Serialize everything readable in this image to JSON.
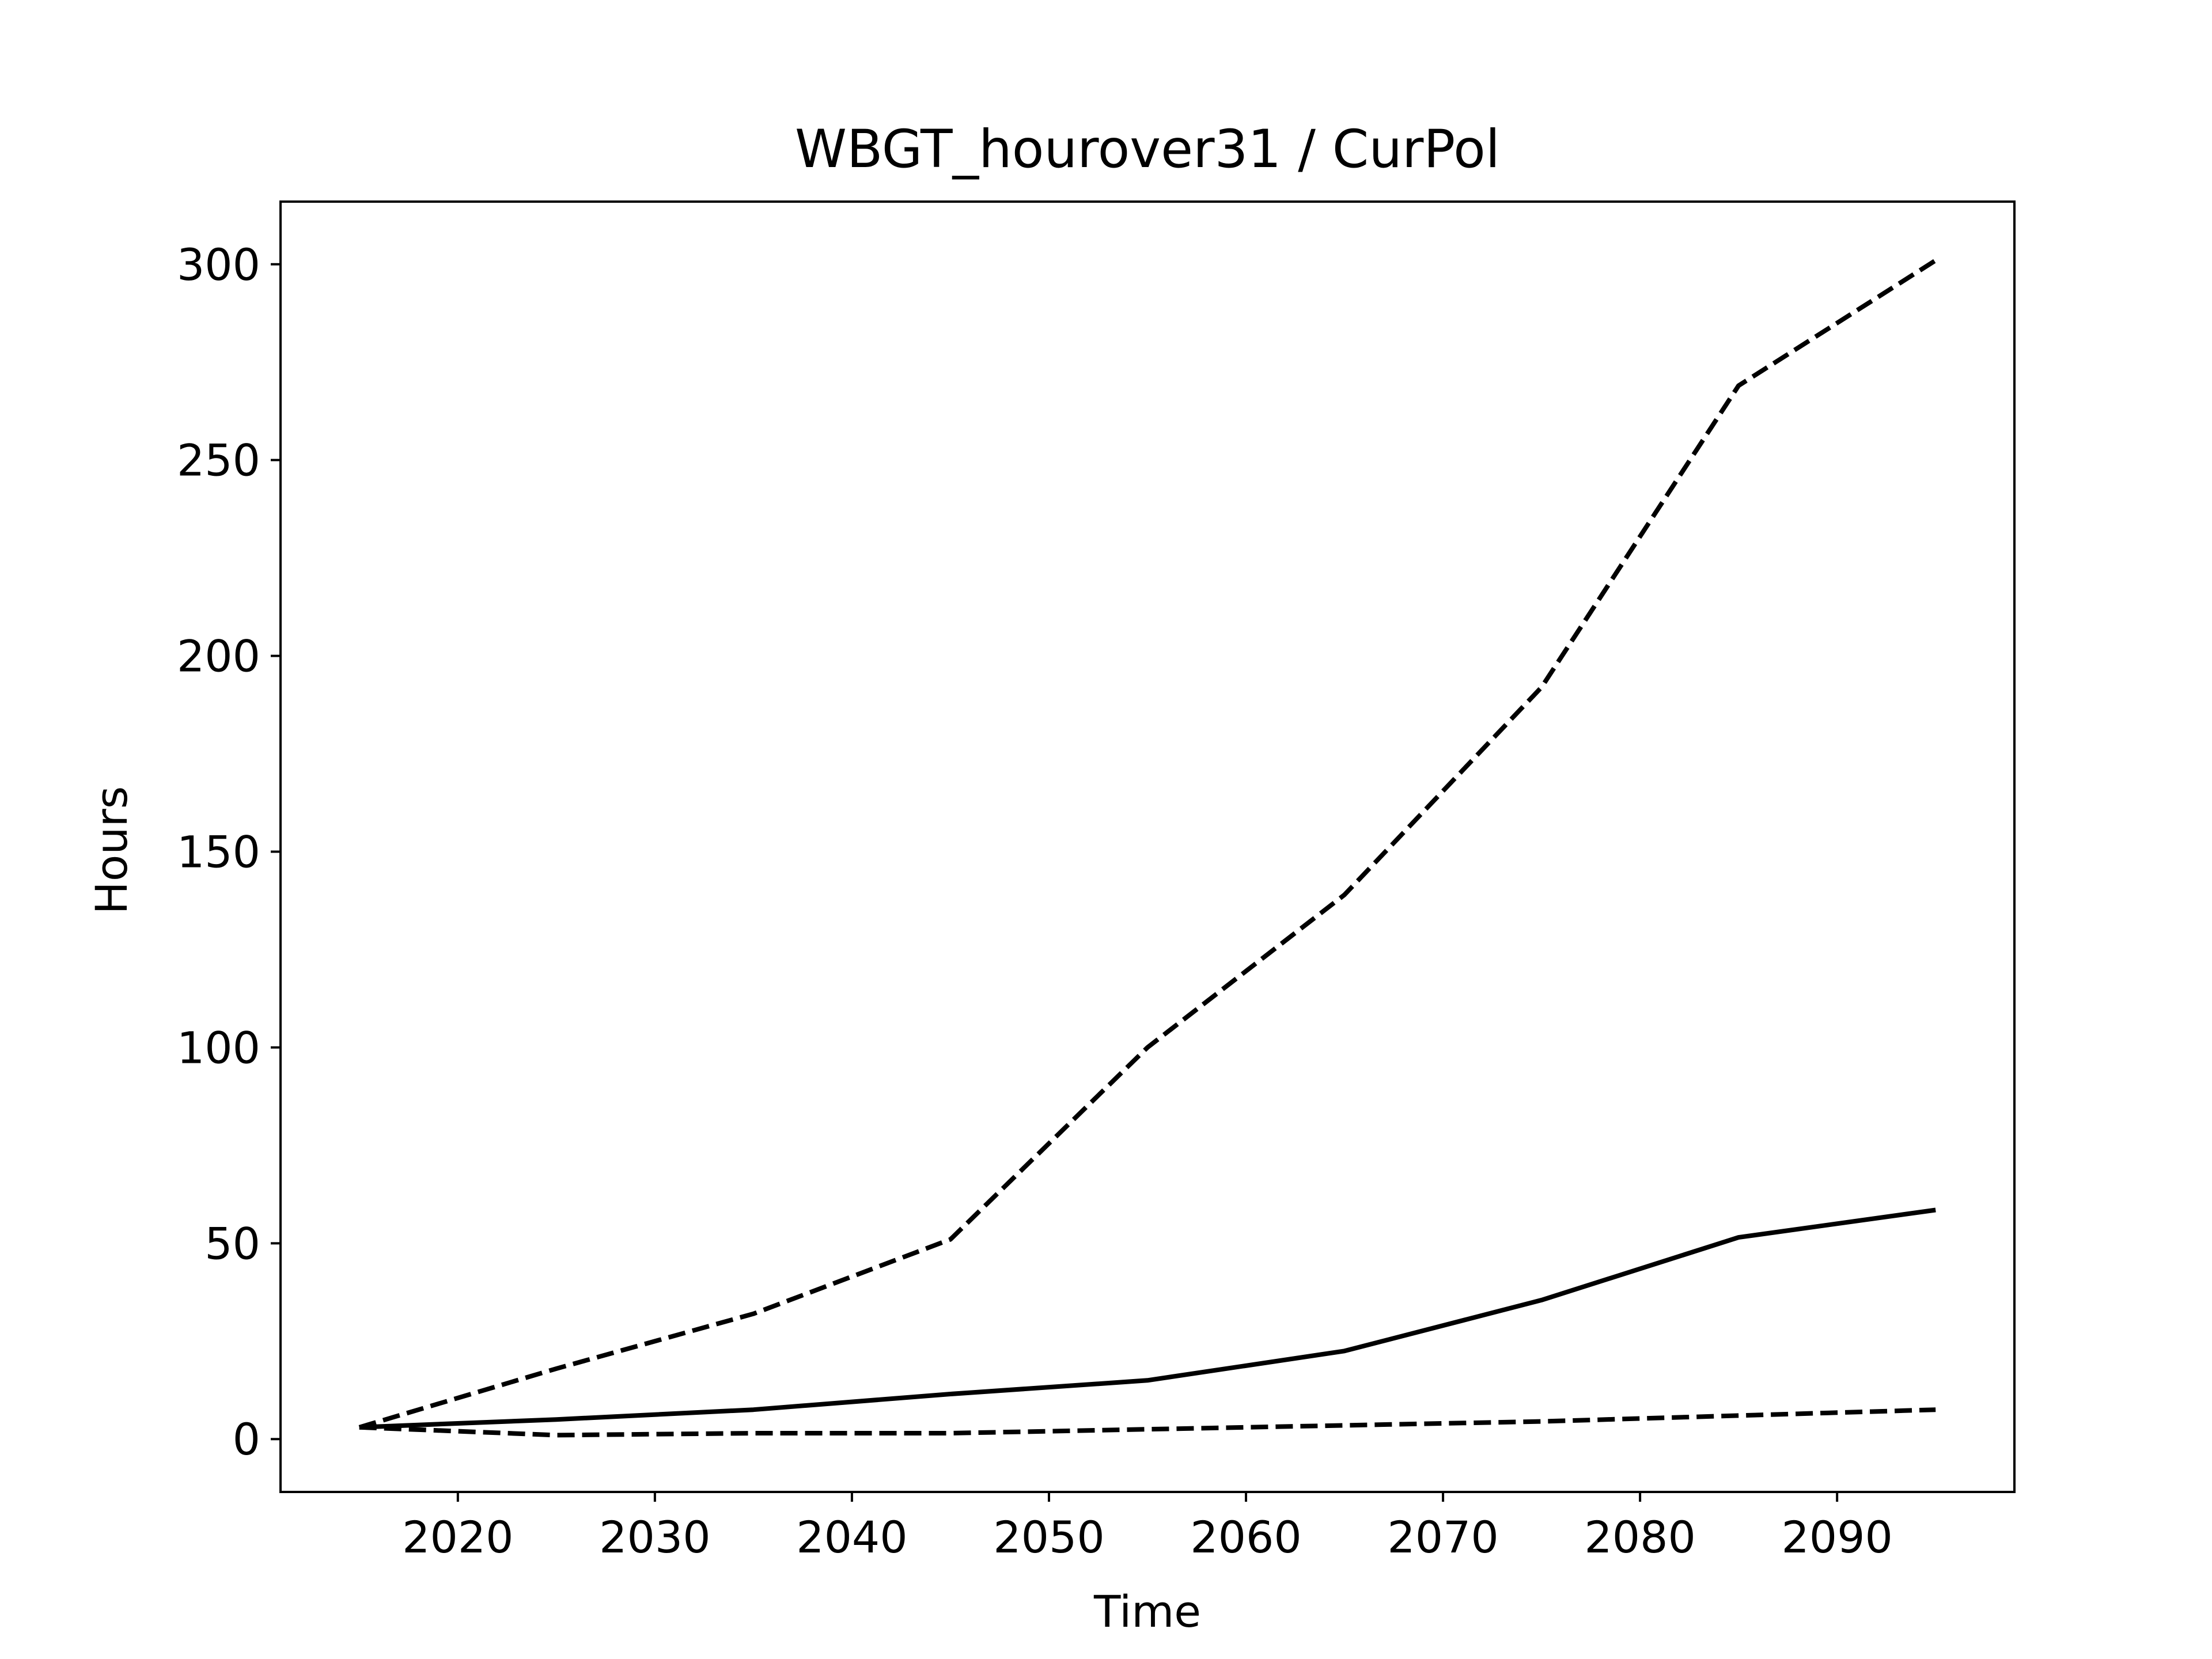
{
  "chart_data": {
    "type": "line",
    "title": "WBGT_hourover31 / CurPol",
    "xlabel": "Time",
    "ylabel": "Hours",
    "xlim": [
      2011,
      2099
    ],
    "ylim": [
      -13.5,
      316
    ],
    "xticks": [
      2020,
      2030,
      2040,
      2050,
      2060,
      2070,
      2080,
      2090
    ],
    "yticks": [
      0,
      50,
      100,
      150,
      200,
      250,
      300
    ],
    "grid": false,
    "legend": "none",
    "x": [
      2015,
      2025,
      2035,
      2045,
      2055,
      2065,
      2075,
      2085,
      2095
    ],
    "series": [
      {
        "style": "dashed",
        "color": "#000000",
        "values": [
          3,
          18,
          32,
          51,
          100,
          139,
          192,
          269,
          301
        ]
      },
      {
        "style": "solid",
        "color": "#000000",
        "values": [
          3,
          5,
          7.5,
          11.5,
          15,
          22.5,
          35.5,
          51.5,
          58.5
        ]
      },
      {
        "style": "dashed",
        "color": "#000000",
        "values": [
          3,
          1,
          1.5,
          1.5,
          2.5,
          3.5,
          4.5,
          6,
          7.5
        ]
      }
    ]
  }
}
